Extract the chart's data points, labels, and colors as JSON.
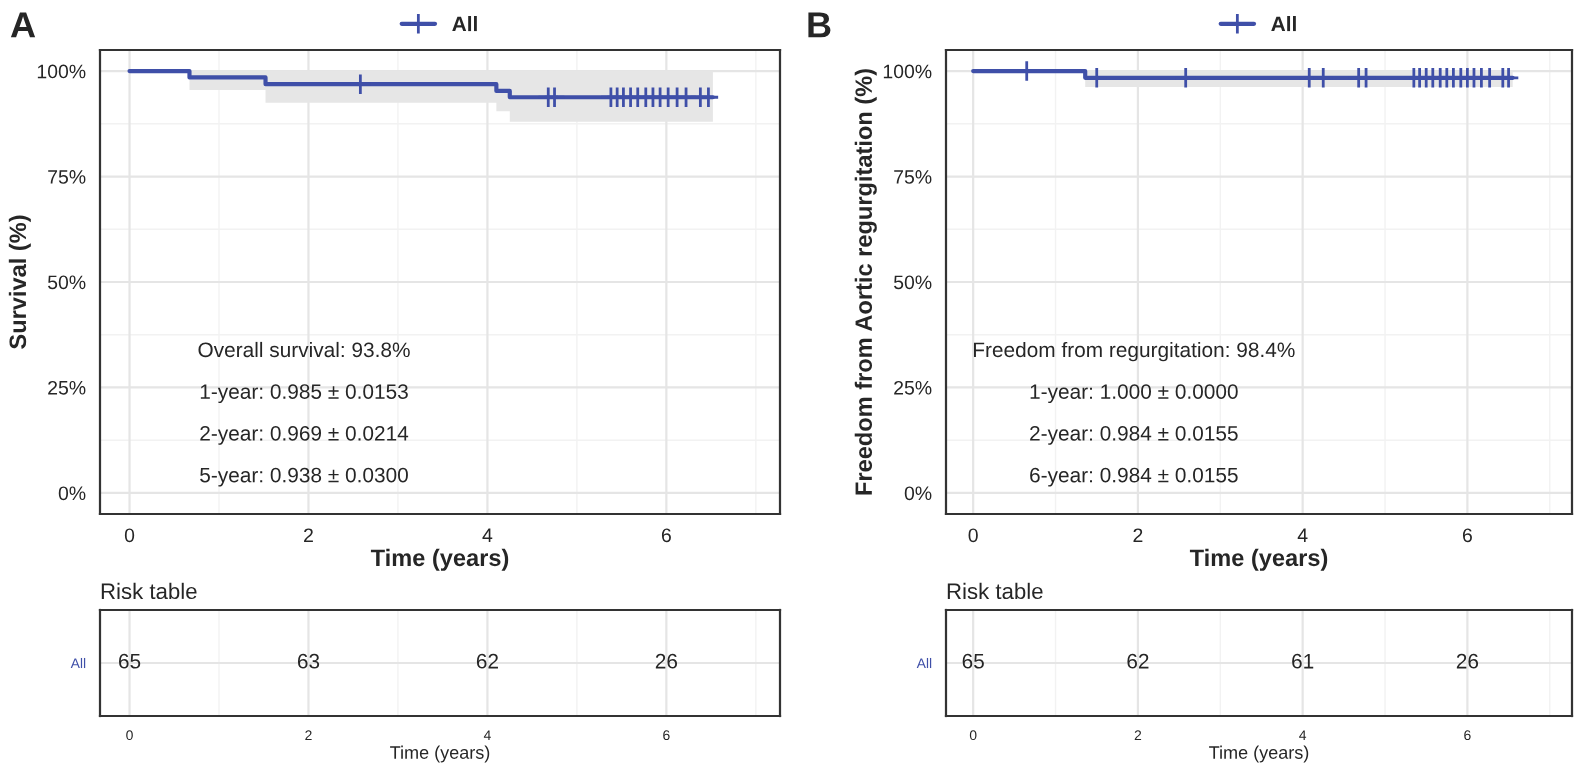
{
  "chart_data": [
    {
      "type": "step",
      "title": "A",
      "xlabel": "Time (years)",
      "ylabel": "Survival (%)",
      "legend": "top",
      "grid": true,
      "xlim": [
        -0.33,
        7.27
      ],
      "xticks": [
        0,
        2,
        4,
        6
      ],
      "ylim": [
        -0.05,
        1.05
      ],
      "yticks": [
        {
          "value": 0,
          "label": "0%"
        },
        {
          "value": 0.25,
          "label": "25%"
        },
        {
          "value": 0.5,
          "label": "50%"
        },
        {
          "value": 0.75,
          "label": "75%"
        },
        {
          "value": 1,
          "label": "100%"
        }
      ],
      "series": [
        {
          "name": "All",
          "type": "step",
          "color": "#3f4fa8",
          "line_style": "solid",
          "x": [
            0,
            0.67,
            1.52,
            4.1,
            4.25,
            6.52
          ],
          "values": [
            1,
            0.985,
            0.969,
            0.953,
            0.938,
            0.938
          ],
          "lower": [
            1,
            0.955,
            0.925,
            0.905,
            0.88,
            0.88
          ],
          "upper": [
            1,
            1,
            1,
            1,
            1,
            1
          ]
        },
        {
          "type": "scatter",
          "color": "#3f4fa8",
          "marker": "cross",
          "x": [
            2.58,
            4.68,
            4.75,
            5.38,
            5.45,
            5.52,
            5.6,
            5.68,
            5.77,
            5.85,
            5.93,
            6.02,
            6.12,
            6.22,
            6.38,
            6.47
          ],
          "values": [
            0.969,
            0.938,
            0.938,
            0.938,
            0.938,
            0.938,
            0.938,
            0.938,
            0.938,
            0.938,
            0.938,
            0.938,
            0.938,
            0.938,
            0.938,
            0.938
          ]
        }
      ],
      "annotations": [
        "Overall survival: 93.8%",
        "1-year: 0.985 ± 0.0153",
        "2-year: 0.969 ± 0.0214",
        "5-year: 0.938 ± 0.0300"
      ]
    },
    {
      "type": "heatmap",
      "title": "Risk table",
      "xlabel": "Time (years)",
      "grid": true,
      "data_labels": true,
      "categories": [
        "0",
        "2",
        "4",
        "6"
      ],
      "y_categories": [
        "All"
      ],
      "color": "#3f4fa8",
      "cells": [
        [
          65,
          63,
          62,
          26
        ]
      ]
    },
    {
      "type": "step",
      "title": "B",
      "xlabel": "Time (years)",
      "ylabel": "Freedom from Aortic regurgitation (%)",
      "legend": "top",
      "grid": true,
      "xlim": [
        -0.33,
        7.27
      ],
      "xticks": [
        0,
        2,
        4,
        6
      ],
      "ylim": [
        -0.05,
        1.05
      ],
      "yticks": [
        {
          "value": 0,
          "label": "0%"
        },
        {
          "value": 0.25,
          "label": "25%"
        },
        {
          "value": 0.5,
          "label": "50%"
        },
        {
          "value": 0.75,
          "label": "75%"
        },
        {
          "value": 1,
          "label": "100%"
        }
      ],
      "series": [
        {
          "name": "All",
          "type": "step",
          "color": "#3f4fa8",
          "line_style": "solid",
          "x": [
            0,
            1.36,
            6.55
          ],
          "values": [
            1,
            0.984,
            0.984
          ],
          "lower": [
            1,
            0.962,
            0.962
          ],
          "upper": [
            1,
            1,
            1
          ]
        },
        {
          "type": "scatter",
          "color": "#3f4fa8",
          "marker": "cross",
          "x": [
            0.65,
            1.5,
            2.58,
            4.08,
            4.25,
            4.68,
            4.77,
            5.35,
            5.42,
            5.5,
            5.58,
            5.67,
            5.75,
            5.83,
            5.92,
            6.0,
            6.08,
            6.17,
            6.27,
            6.43,
            6.5
          ],
          "values": [
            1,
            0.984,
            0.984,
            0.984,
            0.984,
            0.984,
            0.984,
            0.984,
            0.984,
            0.984,
            0.984,
            0.984,
            0.984,
            0.984,
            0.984,
            0.984,
            0.984,
            0.984,
            0.984,
            0.984,
            0.984
          ]
        }
      ],
      "annotations": [
        "Freedom from regurgitation: 98.4%",
        "1-year: 1.000 ± 0.0000",
        "2-year: 0.984 ± 0.0155",
        "6-year: 0.984 ± 0.0155"
      ]
    },
    {
      "type": "heatmap",
      "title": "Risk table",
      "xlabel": "Time (years)",
      "grid": true,
      "data_labels": true,
      "categories": [
        "0",
        "2",
        "4",
        "6"
      ],
      "y_categories": [
        "All"
      ],
      "color": "#3f4fa8",
      "cells": [
        [
          65,
          62,
          61,
          26
        ]
      ]
    }
  ]
}
